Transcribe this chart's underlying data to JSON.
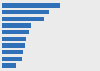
{
  "values": [
    76,
    62,
    55,
    38,
    35,
    32,
    30,
    28,
    26,
    18
  ],
  "bar_color": "#3070b8",
  "background_color": "#ebebeb",
  "xlim": [
    0,
    100
  ],
  "figsize": [
    1.0,
    0.71
  ],
  "dpi": 100,
  "bar_height": 0.65,
  "grid_color": "#ffffff",
  "grid_linewidth": 0.7
}
